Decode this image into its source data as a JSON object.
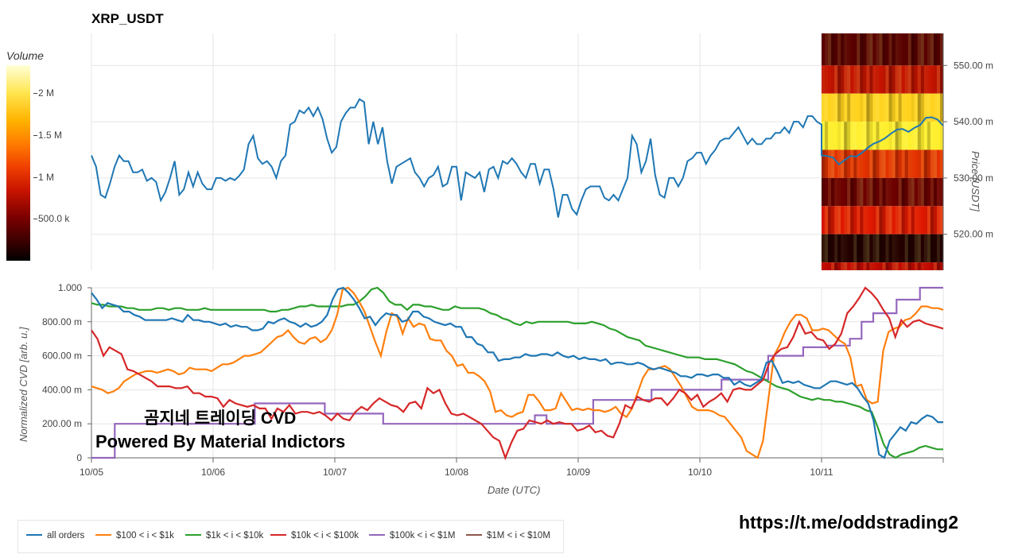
{
  "title": "XRP_USDT",
  "colorbar": {
    "title": "Volume",
    "ticks": [
      "2 M",
      "1.5 M",
      "1 M",
      "500.0 k"
    ]
  },
  "price_axis": {
    "title": "Price [USDT]",
    "ticks": [
      "550.00 m",
      "540.00 m",
      "530.00 m",
      "520.00 m"
    ]
  },
  "cvd_axis": {
    "title": "Normalized CVD [arb. u.]",
    "ticks": [
      "1.000",
      "800.00 m",
      "600.00 m",
      "400.00 m",
      "200.00 m",
      "0"
    ]
  },
  "x_axis": {
    "title": "Date (UTC)",
    "ticks": [
      "10/05",
      "10/06",
      "10/07",
      "10/08",
      "10/09",
      "10/10",
      "10/11"
    ]
  },
  "legend": [
    "all orders",
    "$100 < i < $1k",
    "$1k < i < $10k",
    "$10k < i < $100k",
    "$100k < i < $1M",
    "$1M < i < $10M"
  ],
  "watermark": {
    "korean": "곰지네 트레이딩 CVD",
    "english": "Powered By Material Indictors"
  },
  "link": "https://t.me/oddstrading2",
  "colors": {
    "all_orders": "#1f77b4",
    "b100_1k": "#ff7f0e",
    "b1k_10k": "#2ca02c",
    "b10k_100k": "#d62728",
    "b100k_1m": "#9467bd",
    "b1m_10m": "#8c564b"
  },
  "chart_data": [
    {
      "type": "line",
      "title": "XRP_USDT",
      "xlabel": "",
      "ylabel": "Price [USDT]",
      "x_range": [
        0,
        7
      ],
      "ylim": [
        513.6,
        555.7
      ],
      "series": [
        {
          "values": [
            534,
            532,
            527,
            526.5,
            529,
            532,
            534,
            533,
            533,
            531,
            531,
            531.5,
            529.5,
            530,
            529.3,
            526,
            527.5,
            530,
            533,
            527,
            528,
            531,
            528.5,
            531,
            529,
            528,
            528,
            530,
            530,
            529.5,
            530,
            529.6,
            530.4,
            531.5,
            536,
            537.5,
            533.5,
            532.5,
            533,
            532,
            530,
            533,
            534,
            539.5,
            540,
            542,
            541.5,
            542.5,
            541,
            542.5,
            540.5,
            537,
            534.5,
            535.5,
            540,
            541.5,
            542.5,
            542.5,
            544,
            543.5,
            536,
            540,
            536,
            539,
            533,
            529,
            532,
            532.5,
            533,
            533.5,
            531,
            530,
            528.5,
            530,
            530.5,
            532,
            528.5,
            529,
            532,
            532,
            526,
            531,
            530.5,
            530,
            531,
            527.5,
            531.5,
            532,
            530,
            533,
            532.5,
            533.5,
            532.5,
            531,
            530,
            532.5,
            532.5,
            529,
            531.5,
            531.5,
            528,
            523,
            527,
            527,
            524.5,
            523.5,
            526,
            528,
            528.5,
            528.5,
            528.5,
            526.5,
            526,
            527,
            526,
            528,
            530,
            537.5,
            536,
            531,
            533,
            537,
            530.5,
            527,
            526.5,
            530,
            530,
            528.5,
            530,
            533,
            533.5,
            534.5,
            534.5,
            532.5,
            534,
            535,
            536.5,
            537,
            537,
            538,
            539,
            537.5,
            536,
            537,
            536,
            536,
            537,
            537,
            538,
            538,
            539,
            538,
            540,
            540,
            539,
            541,
            541,
            540,
            539.5
          ]
        },
        {
          "values": [
            534.0,
            533.9,
            533.6,
            532.4,
            533.2,
            533.9,
            533.8,
            534.5,
            535.4,
            536.1,
            536.5,
            537.1,
            537.9,
            538.6,
            538.7,
            538.2,
            538.9,
            539.4,
            540.7,
            540.8,
            540.4,
            539.3
          ]
        }
      ],
      "heatmap": {
        "price_levels": [
          552.5,
          547.5,
          542.5,
          537.5,
          532.5,
          527.5,
          522.5,
          517.5,
          514.5
        ],
        "volume_band": [
          "dark red",
          "red",
          "yellow",
          "bright yellow",
          "red-orange",
          "dark red",
          "red",
          "near black",
          "red"
        ]
      }
    },
    {
      "type": "line",
      "xlabel": "Date (UTC)",
      "ylabel": "Normalized CVD [arb. u.]",
      "x_range": [
        0,
        7
      ],
      "ylim": [
        0,
        1.0
      ],
      "series": [
        {
          "name": "all orders",
          "values": [
            0.97,
            0.93,
            0.88,
            0.91,
            0.9,
            0.89,
            0.86,
            0.86,
            0.84,
            0.83,
            0.81,
            0.81,
            0.81,
            0.81,
            0.81,
            0.82,
            0.81,
            0.8,
            0.84,
            0.81,
            0.81,
            0.8,
            0.8,
            0.79,
            0.78,
            0.79,
            0.77,
            0.78,
            0.77,
            0.77,
            0.75,
            0.75,
            0.76,
            0.8,
            0.79,
            0.81,
            0.82,
            0.8,
            0.79,
            0.77,
            0.79,
            0.77,
            0.78,
            0.8,
            0.84,
            0.93,
            0.99,
            1.0,
            0.97,
            0.93,
            0.88,
            0.82,
            0.83,
            0.78,
            0.82,
            0.85,
            0.84,
            0.84,
            0.8,
            0.81,
            0.86,
            0.86,
            0.83,
            0.82,
            0.8,
            0.79,
            0.78,
            0.79,
            0.77,
            0.77,
            0.71,
            0.71,
            0.67,
            0.66,
            0.62,
            0.62,
            0.57,
            0.58,
            0.58,
            0.59,
            0.59,
            0.61,
            0.6,
            0.6,
            0.61,
            0.61,
            0.6,
            0.62,
            0.6,
            0.59,
            0.6,
            0.58,
            0.59,
            0.58,
            0.58,
            0.57,
            0.58,
            0.55,
            0.56,
            0.56,
            0.55,
            0.55,
            0.56,
            0.55,
            0.53,
            0.52,
            0.53,
            0.52,
            0.51,
            0.5,
            0.48,
            0.48,
            0.47,
            0.49,
            0.49,
            0.48,
            0.49,
            0.49,
            0.47,
            0.47,
            0.43,
            0.45,
            0.43,
            0.42,
            0.44,
            0.46,
            0.56,
            0.57,
            0.51,
            0.44,
            0.45,
            0.44,
            0.45,
            0.43,
            0.42,
            0.41,
            0.41,
            0.43,
            0.45,
            0.45,
            0.44,
            0.43,
            0.44,
            0.41,
            0.36,
            0.32,
            0.22,
            0.02,
            0.0,
            0.1,
            0.14,
            0.18,
            0.16,
            0.21,
            0.2,
            0.23,
            0.25,
            0.24,
            0.21,
            0.21
          ]
        },
        {
          "name": "$100 < i < $1k",
          "values": [
            0.42,
            0.41,
            0.4,
            0.38,
            0.39,
            0.41,
            0.45,
            0.47,
            0.49,
            0.5,
            0.51,
            0.51,
            0.5,
            0.51,
            0.52,
            0.51,
            0.49,
            0.5,
            0.53,
            0.52,
            0.52,
            0.52,
            0.51,
            0.53,
            0.55,
            0.55,
            0.56,
            0.58,
            0.6,
            0.6,
            0.61,
            0.62,
            0.65,
            0.68,
            0.71,
            0.72,
            0.75,
            0.71,
            0.68,
            0.67,
            0.7,
            0.71,
            0.68,
            0.7,
            0.75,
            0.84,
            0.99,
            1.0,
            0.97,
            0.92,
            0.86,
            0.77,
            0.68,
            0.6,
            0.74,
            0.85,
            0.83,
            0.73,
            0.82,
            0.77,
            0.79,
            0.78,
            0.7,
            0.69,
            0.69,
            0.63,
            0.6,
            0.54,
            0.55,
            0.5,
            0.5,
            0.48,
            0.45,
            0.39,
            0.27,
            0.28,
            0.25,
            0.24,
            0.26,
            0.27,
            0.37,
            0.37,
            0.33,
            0.28,
            0.28,
            0.29,
            0.38,
            0.33,
            0.28,
            0.29,
            0.28,
            0.29,
            0.28,
            0.28,
            0.27,
            0.28,
            0.3,
            0.26,
            0.24,
            0.29,
            0.38,
            0.47,
            0.52,
            0.52,
            0.53,
            0.54,
            0.52,
            0.47,
            0.42,
            0.36,
            0.3,
            0.28,
            0.28,
            0.28,
            0.27,
            0.25,
            0.24,
            0.2,
            0.16,
            0.12,
            0.04,
            0.02,
            0.0,
            0.1,
            0.35,
            0.6,
            0.66,
            0.74,
            0.8,
            0.84,
            0.84,
            0.82,
            0.75,
            0.75,
            0.76,
            0.75,
            0.72,
            0.69,
            0.67,
            0.59,
            0.42,
            0.43,
            0.34,
            0.32,
            0.33,
            0.63,
            0.74,
            0.76,
            0.77,
            0.81,
            0.82,
            0.85,
            0.89,
            0.89,
            0.88,
            0.88,
            0.87
          ]
        },
        {
          "name": "$1k < i < $10k",
          "values": [
            0.91,
            0.9,
            0.9,
            0.89,
            0.89,
            0.89,
            0.88,
            0.88,
            0.87,
            0.87,
            0.87,
            0.88,
            0.88,
            0.87,
            0.88,
            0.88,
            0.87,
            0.87,
            0.87,
            0.88,
            0.87,
            0.87,
            0.87,
            0.87,
            0.87,
            0.87,
            0.87,
            0.87,
            0.87,
            0.87,
            0.86,
            0.86,
            0.87,
            0.87,
            0.88,
            0.89,
            0.89,
            0.9,
            0.89,
            0.89,
            0.89,
            0.89,
            0.89,
            0.9,
            0.9,
            0.92,
            0.95,
            0.99,
            1.0,
            0.97,
            0.92,
            0.9,
            0.9,
            0.87,
            0.9,
            0.9,
            0.89,
            0.89,
            0.88,
            0.87,
            0.87,
            0.89,
            0.88,
            0.88,
            0.88,
            0.88,
            0.87,
            0.85,
            0.84,
            0.82,
            0.81,
            0.79,
            0.78,
            0.8,
            0.79,
            0.8,
            0.8,
            0.8,
            0.8,
            0.8,
            0.8,
            0.79,
            0.79,
            0.79,
            0.8,
            0.79,
            0.78,
            0.76,
            0.75,
            0.73,
            0.71,
            0.7,
            0.69,
            0.66,
            0.65,
            0.64,
            0.63,
            0.62,
            0.61,
            0.6,
            0.59,
            0.59,
            0.59,
            0.58,
            0.58,
            0.58,
            0.57,
            0.56,
            0.55,
            0.53,
            0.51,
            0.5,
            0.48,
            0.46,
            0.44,
            0.42,
            0.41,
            0.4,
            0.38,
            0.36,
            0.35,
            0.34,
            0.35,
            0.34,
            0.34,
            0.33,
            0.33,
            0.32,
            0.31,
            0.3,
            0.28,
            0.27,
            0.18,
            0.08,
            0.02,
            0.0,
            0.02,
            0.03,
            0.04,
            0.06,
            0.07,
            0.06,
            0.05,
            0.05
          ]
        },
        {
          "name": "$10k < i < $100k",
          "values": [
            0.75,
            0.7,
            0.6,
            0.65,
            0.63,
            0.61,
            0.52,
            0.51,
            0.49,
            0.47,
            0.45,
            0.42,
            0.42,
            0.42,
            0.41,
            0.41,
            0.42,
            0.38,
            0.38,
            0.36,
            0.36,
            0.35,
            0.3,
            0.34,
            0.32,
            0.31,
            0.3,
            0.31,
            0.29,
            0.29,
            0.23,
            0.29,
            0.27,
            0.31,
            0.26,
            0.27,
            0.27,
            0.26,
            0.27,
            0.25,
            0.22,
            0.26,
            0.23,
            0.22,
            0.27,
            0.3,
            0.28,
            0.32,
            0.35,
            0.33,
            0.31,
            0.3,
            0.27,
            0.32,
            0.33,
            0.29,
            0.41,
            0.38,
            0.4,
            0.32,
            0.26,
            0.25,
            0.26,
            0.24,
            0.22,
            0.2,
            0.16,
            0.12,
            0.1,
            0.0,
            0.09,
            0.16,
            0.17,
            0.22,
            0.21,
            0.2,
            0.22,
            0.2,
            0.21,
            0.2,
            0.2,
            0.16,
            0.17,
            0.19,
            0.15,
            0.16,
            0.13,
            0.12,
            0.2,
            0.31,
            0.29,
            0.36,
            0.34,
            0.33,
            0.35,
            0.35,
            0.31,
            0.35,
            0.4,
            0.38,
            0.34,
            0.37,
            0.3,
            0.33,
            0.35,
            0.38,
            0.33,
            0.4,
            0.41,
            0.4,
            0.4,
            0.43,
            0.46,
            0.56,
            0.61,
            0.64,
            0.65,
            0.71,
            0.8,
            0.73,
            0.74,
            0.7,
            0.69,
            0.64,
            0.67,
            0.73,
            0.85,
            0.89,
            0.94,
            1.0,
            0.97,
            0.93,
            0.87,
            0.82,
            0.71,
            0.81,
            0.77,
            0.8,
            0.81,
            0.79,
            0.78,
            0.77,
            0.76
          ]
        },
        {
          "name": "$100k < i < $1M",
          "values": [
            0.0,
            0.0,
            0.2,
            0.2,
            0.2,
            0.2,
            0.2,
            0.2,
            0.2,
            0.2,
            0.2,
            0.2,
            0.2,
            0.2,
            0.32,
            0.32,
            0.32,
            0.32,
            0.32,
            0.32,
            0.26,
            0.26,
            0.26,
            0.26,
            0.26,
            0.2,
            0.2,
            0.2,
            0.2,
            0.2,
            0.2,
            0.2,
            0.2,
            0.2,
            0.2,
            0.2,
            0.2,
            0.2,
            0.25,
            0.2,
            0.2,
            0.2,
            0.2,
            0.34,
            0.34,
            0.34,
            0.34,
            0.34,
            0.4,
            0.4,
            0.4,
            0.4,
            0.4,
            0.4,
            0.46,
            0.46,
            0.46,
            0.46,
            0.6,
            0.6,
            0.6,
            0.65,
            0.65,
            0.66,
            0.66,
            0.7,
            0.8,
            0.85,
            0.85,
            0.93,
            0.93,
            1.0,
            1.0,
            1.0
          ]
        },
        {
          "name": "$1M < i < $10M",
          "values": []
        }
      ]
    }
  ]
}
